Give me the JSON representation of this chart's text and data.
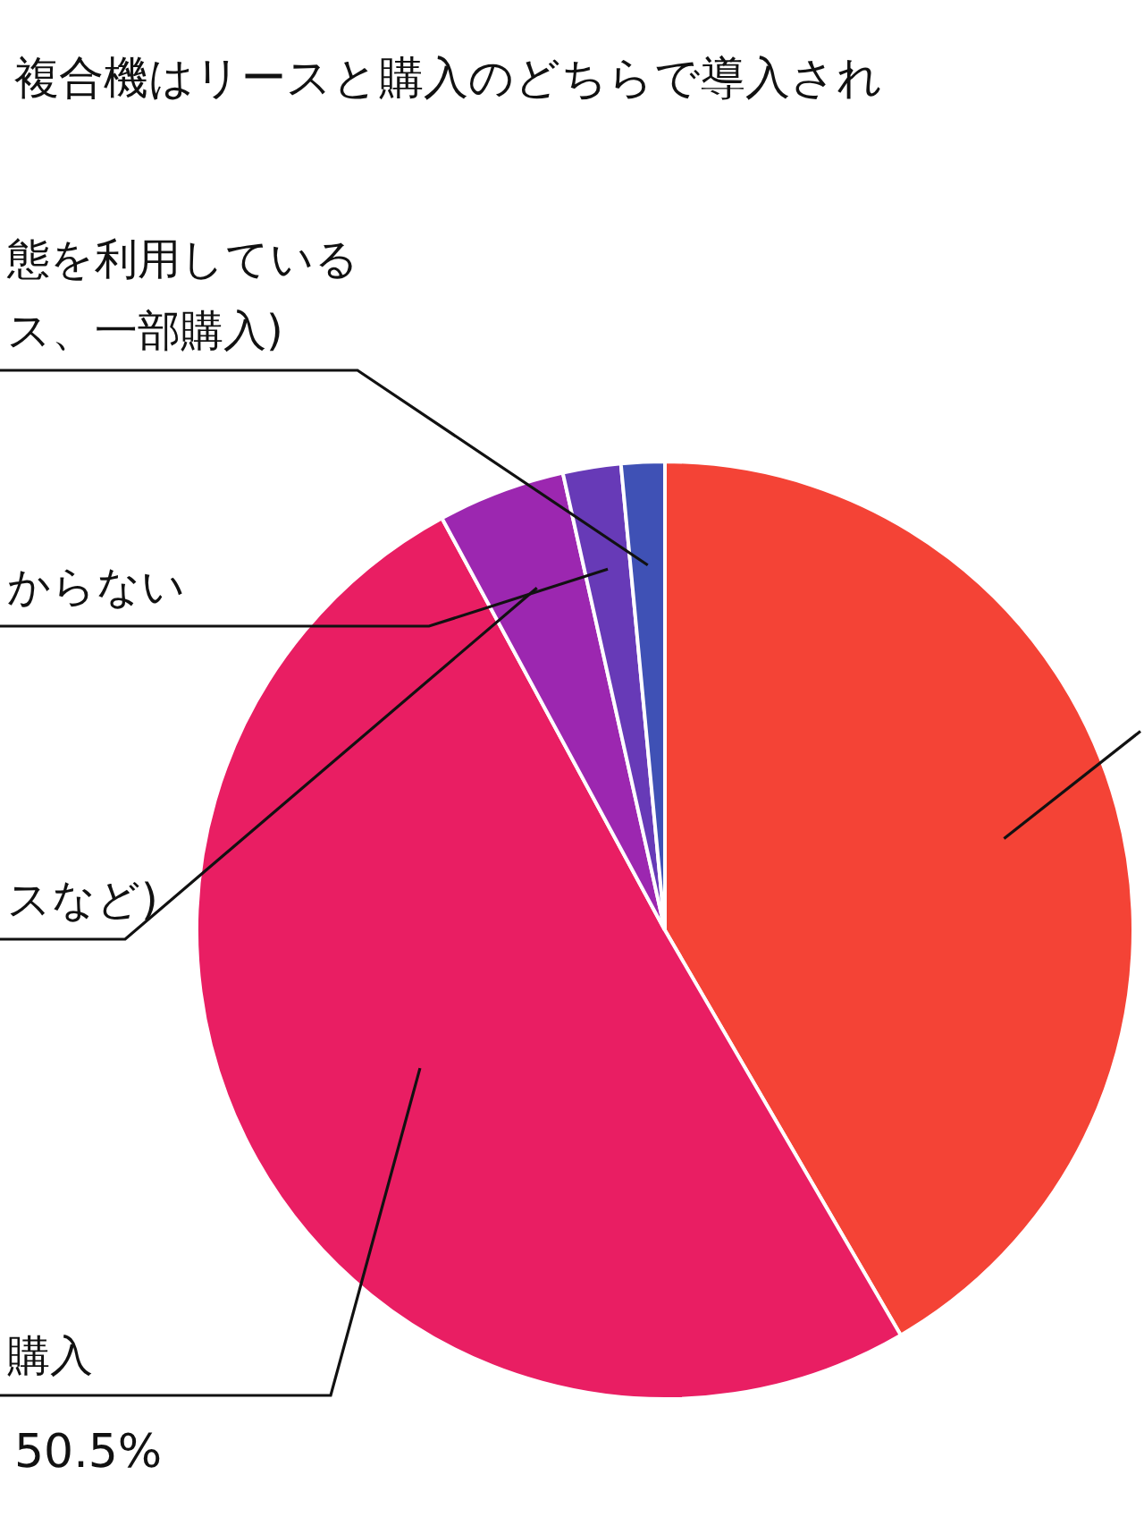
{
  "chart_data": {
    "type": "pie",
    "title": "複合機はリースと購入のどちらで導入され",
    "categories": [
      null,
      "購入",
      "スなど)",
      "からない",
      "態を利用しているス、一部購入)"
    ],
    "values": [
      41.6,
      50.5,
      4.4,
      2.0,
      1.5
    ],
    "colors": [
      "#f44336",
      "#e91e63",
      "#9c27b0",
      "#673ab7",
      "#3f51b5"
    ],
    "value_labels": [
      null,
      "50.5%",
      null,
      null,
      null
    ]
  }
}
